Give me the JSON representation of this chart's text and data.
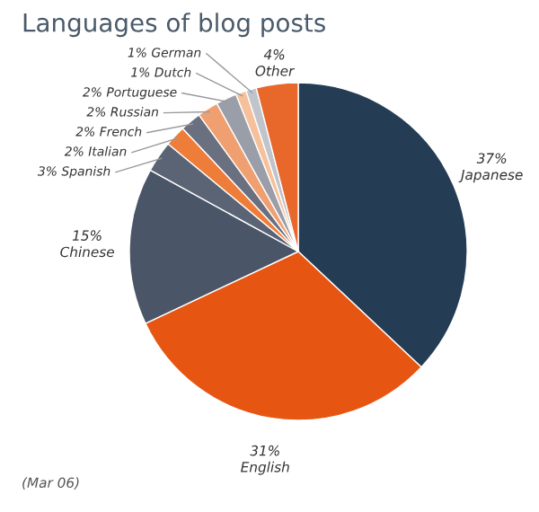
{
  "chart_data": {
    "type": "pie",
    "title": "Languages of blog posts",
    "categories": [
      "Japanese",
      "English",
      "Chinese",
      "Spanish",
      "Italian",
      "French",
      "Russian",
      "Portuguese",
      "Dutch",
      "German",
      "Other"
    ],
    "values": [
      37,
      31,
      15,
      3,
      2,
      2,
      2,
      2,
      1,
      1,
      4
    ],
    "value_labels": [
      "37%",
      "31%",
      "15%",
      "3%",
      "2%",
      "2%",
      "2%",
      "2%",
      "1%",
      "1%",
      "4%"
    ],
    "colors": [
      "#243d55",
      "#e65612",
      "#4a5568",
      "#5b6475",
      "#ef7d3a",
      "#6b7080",
      "#f0a070",
      "#9a9ea8",
      "#f6c09a",
      "#c0c4cc",
      "#e8672a"
    ],
    "annotations": [
      "(Mar 06)"
    ]
  }
}
